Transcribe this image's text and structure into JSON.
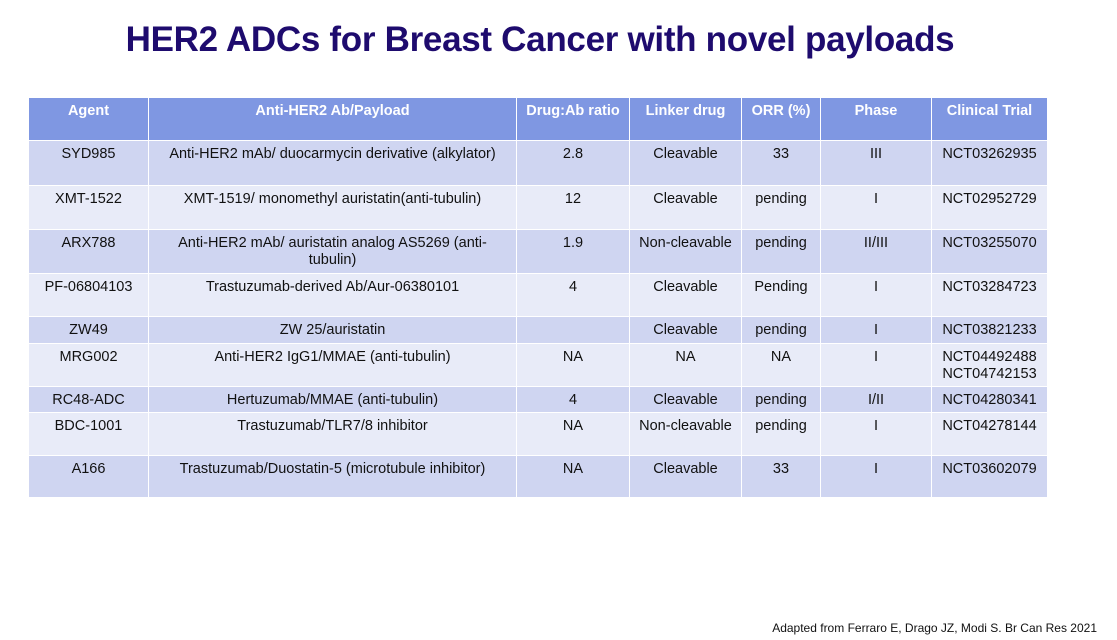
{
  "header": {
    "title": "HER2 ADCs for Breast Cancer with novel payloads"
  },
  "table": {
    "columns": [
      "Agent",
      "Anti-HER2 Ab/Payload",
      "Drug:Ab ratio",
      "Linker drug",
      "ORR (%)",
      "Phase",
      "Clinical Trial"
    ],
    "rows": [
      [
        "SYD985",
        "Anti-HER2 mAb/ duocarmycin derivative (alkylator)",
        "2.8",
        "Cleavable",
        "33",
        "III",
        "NCT03262935"
      ],
      [
        "XMT-1522",
        "XMT-1519/ monomethyl auristatin(anti-tubulin)",
        "12",
        "Cleavable",
        "pending",
        "I",
        "NCT02952729"
      ],
      [
        "ARX788",
        "Anti-HER2 mAb/ auristatin analog AS5269 (anti-tubulin)",
        "1.9",
        "Non-cleavable",
        "pending",
        "II/III",
        "NCT03255070"
      ],
      [
        "PF-06804103",
        "Trastuzumab-derived Ab/Aur-06380101",
        "4",
        "Cleavable",
        "Pending",
        "I",
        "NCT03284723"
      ],
      [
        "ZW49",
        "ZW 25/auristatin",
        null,
        "Cleavable",
        "pending",
        "I",
        "NCT03821233"
      ],
      [
        "MRG002",
        "Anti-HER2 IgG1/MMAE (anti-tubulin)",
        "NA",
        "NA",
        "NA",
        "I",
        "NCT04492488\nNCT04742153"
      ],
      [
        "RC48-ADC",
        "Hertuzumab/MMAE (anti-tubulin)",
        "4",
        "Cleavable",
        "pending",
        "I/II",
        "NCT04280341"
      ],
      [
        "BDC-1001",
        "Trastuzumab/TLR7/8 inhibitor",
        "NA",
        "Non-cleavable",
        "pending",
        "I",
        "NCT04278144"
      ],
      [
        "A166",
        "Trastuzumab/Duostatin-5 (microtubule inhibitor)",
        "NA",
        "Cleavable",
        "33",
        "I",
        "NCT03602079"
      ]
    ]
  },
  "footer": {
    "source": "Adapted from Ferraro E, Drago JZ, Modi S. Br Can Res 2021"
  }
}
